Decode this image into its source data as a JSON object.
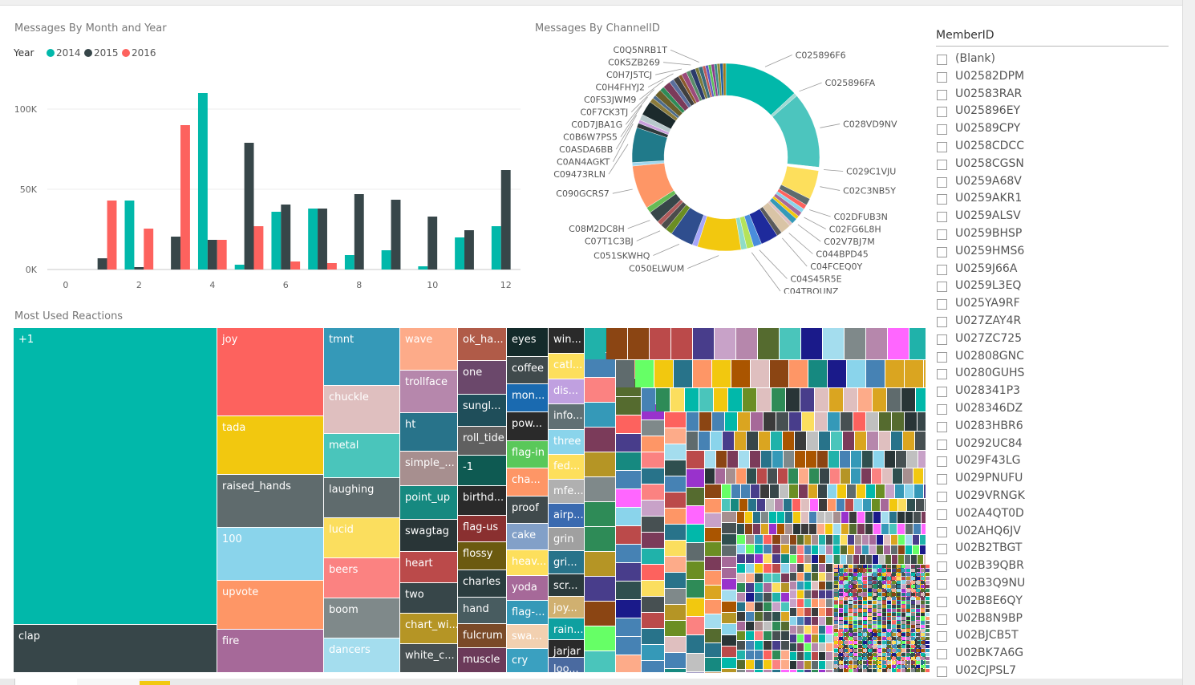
{
  "bar_visual": {
    "title": "Messages By Month and Year"
  },
  "donut_visual": {
    "title": "Messages By ChannelID"
  },
  "treemap_visual": {
    "title": "Most Used Reactions"
  },
  "slicer": {
    "title": "MemberID",
    "items": [
      "(Blank)",
      "U02582DPM",
      "U02583RAR",
      "U025896EY",
      "U02589CPY",
      "U0258CDCC",
      "U0258CGSN",
      "U0259A68V",
      "U0259AKR1",
      "U0259ALSV",
      "U0259BHSP",
      "U0259HMS6",
      "U0259J66A",
      "U0259L3EQ",
      "U025YA9RF",
      "U027ZAY4R",
      "U027ZC725",
      "U02808GNC",
      "U0280GUHS",
      "U028341P3",
      "U028346DZ",
      "U0283HBR6",
      "U0292UC84",
      "U029F43LG",
      "U029PNUFU",
      "U029VRNGK",
      "U02A4QT0D",
      "U02AHQ6JV",
      "U02B2TBGT",
      "U02B39QBR",
      "U02B3Q9NU",
      "U02B8E6QY",
      "U02B8N9BP",
      "U02BJCB5T",
      "U02BK7A6G",
      "U02CJPSL7"
    ]
  },
  "chart_data": [
    {
      "type": "bar",
      "title": "Messages By Month and Year",
      "legend": {
        "title": "Year",
        "placement": "top-left"
      },
      "x": [
        1,
        2,
        3,
        4,
        5,
        6,
        7,
        8,
        9,
        10,
        11,
        12
      ],
      "xticks": [
        0,
        2,
        4,
        6,
        8,
        10,
        12
      ],
      "xlim": [
        -0.5,
        12.4
      ],
      "ylim": [
        0,
        115000
      ],
      "yticks": [
        {
          "v": 0,
          "label": "0K"
        },
        {
          "v": 50000,
          "label": "50K"
        },
        {
          "v": 100000,
          "label": "100K"
        }
      ],
      "grid": true,
      "series": [
        {
          "name": "2014",
          "color": "#01b8aa",
          "values": [
            0,
            43000,
            0,
            110000,
            3000,
            36000,
            38000,
            9000,
            12000,
            2000,
            20000,
            27000
          ]
        },
        {
          "name": "2015",
          "color": "#374649",
          "values": [
            7000,
            1500,
            20500,
            18500,
            79000,
            40500,
            38000,
            47000,
            43500,
            33000,
            24500,
            62000
          ]
        },
        {
          "name": "2016",
          "color": "#fd625e",
          "values": [
            43000,
            25500,
            90000,
            18500,
            27000,
            5000,
            4000,
            0,
            0,
            0,
            0,
            0
          ]
        }
      ]
    },
    {
      "type": "pie",
      "title": "Messages By ChannelID",
      "slices": [
        {
          "label": "C025896F6",
          "value": 13,
          "color": "#01b8aa"
        },
        {
          "label": "C025896FA",
          "value": 0.6,
          "color": "#9fd9d3"
        },
        {
          "label": "C028VD9NV",
          "value": 13,
          "color": "#4cc5be"
        },
        {
          "label": "C029C1VJU",
          "value": 0.6,
          "color": "#ffffff"
        },
        {
          "label": "C02C3NB5Y",
          "value": 5,
          "color": "#fddf5c"
        },
        {
          "label": "",
          "value": 1.2,
          "color": "#5f6b6d"
        },
        {
          "label": "C02DFUB3N",
          "value": 0.8,
          "color": "#fd625e"
        },
        {
          "label": "",
          "value": 0.7,
          "color": "#8ad4eb"
        },
        {
          "label": "C02FG6L8H",
          "value": 0.8,
          "color": "#a66999"
        },
        {
          "label": "",
          "value": 0.6,
          "color": "#f2c80f"
        },
        {
          "label": "C02V7BJ7M",
          "value": 1.0,
          "color": "#3599b8"
        },
        {
          "label": "",
          "value": 0.6,
          "color": "#dfbfbf"
        },
        {
          "label": "C044BPD45",
          "value": 1.8,
          "color": "#d9c4a6"
        },
        {
          "label": "C04FCEQ0Y",
          "value": 0.9,
          "color": "#5b5b5b"
        },
        {
          "label": "",
          "value": 3.0,
          "color": "#1e2a9c"
        },
        {
          "label": "C04S45R5E",
          "value": 1.4,
          "color": "#4a8ddc"
        },
        {
          "label": "C04TBQUNZ",
          "value": 1.2,
          "color": "#b5e35a"
        },
        {
          "label": "",
          "value": 1.0,
          "color": "#8fdcc8"
        },
        {
          "label": "C050ELWUM",
          "value": 7.5,
          "color": "#f2c80f"
        },
        {
          "label": "",
          "value": 0.9,
          "color": "#a6a6fb"
        },
        {
          "label": "C051SKWHQ",
          "value": 4.0,
          "color": "#2f4e8e"
        },
        {
          "label": "",
          "value": 1.2,
          "color": "#6b8e23"
        },
        {
          "label": "C07T1C3BJ",
          "value": 1.1,
          "color": "#4c4c4c"
        },
        {
          "label": "",
          "value": 0.8,
          "color": "#b05b5b"
        },
        {
          "label": "C08M2DC8H",
          "value": 2.0,
          "color": "#374649"
        },
        {
          "label": "",
          "value": 1.0,
          "color": "#66bb55"
        },
        {
          "label": "C090GCRS7",
          "value": 7.5,
          "color": "#fe9666"
        },
        {
          "label": "",
          "value": 0.6,
          "color": "#a0d8ef"
        },
        {
          "label": "C09473RLN",
          "value": 6.0,
          "color": "#207a8a"
        },
        {
          "label": "C0AN4AGKT",
          "value": 0.8,
          "color": "#2e3a3c"
        },
        {
          "label": "",
          "value": 0.6,
          "color": "#c9a0dc"
        },
        {
          "label": "C0ASDA6BB",
          "value": 1.0,
          "color": "#b8c9cc"
        },
        {
          "label": "C0B6W7PS5",
          "value": 2.5,
          "color": "#1c2a2c"
        },
        {
          "label": "C0D7JBA1G",
          "value": 0.8,
          "color": "#8b7b3b"
        },
        {
          "label": "",
          "value": 0.6,
          "color": "#4d6b8a"
        },
        {
          "label": "C0F7CK3TJ",
          "value": 1.2,
          "color": "#6a5f2a"
        },
        {
          "label": "",
          "value": 0.8,
          "color": "#2e8b57"
        },
        {
          "label": "C0FS3JWM9",
          "value": 1.3,
          "color": "#7b3b5a"
        },
        {
          "label": "",
          "value": 0.8,
          "color": "#5a6e9c"
        },
        {
          "label": "C0H4FHYJ2",
          "value": 1.0,
          "color": "#3f3f3f"
        },
        {
          "label": "",
          "value": 0.6,
          "color": "#8a5a2b"
        },
        {
          "label": "C0H7J5TCJ",
          "value": 0.9,
          "color": "#9c4a7a"
        },
        {
          "label": "",
          "value": 0.7,
          "color": "#5a8c6a"
        },
        {
          "label": "C0K5ZB269",
          "value": 0.9,
          "color": "#2b3b6b"
        },
        {
          "label": "",
          "value": 0.6,
          "color": "#7a7a3a"
        },
        {
          "label": "C0Q5NRB1T",
          "value": 0.7,
          "color": "#3b6b7b"
        },
        {
          "label": "",
          "value": 0.5,
          "color": "#c05a5a"
        },
        {
          "label": "",
          "value": 0.5,
          "color": "#5a5ac0"
        },
        {
          "label": "",
          "value": 0.5,
          "color": "#5ac05a"
        },
        {
          "label": "",
          "value": 0.5,
          "color": "#8a3a8a"
        },
        {
          "label": "",
          "value": 0.5,
          "color": "#3a8a8a"
        },
        {
          "label": "",
          "value": 0.5,
          "color": "#8a8a3a"
        },
        {
          "label": "",
          "value": 0.5,
          "color": "#1a5aa0"
        },
        {
          "label": "",
          "value": 0.5,
          "color": "#a07a1a"
        }
      ]
    },
    {
      "type": "treemap",
      "title": "Most Used Reactions",
      "items": [
        {
          "label": "+1",
          "color": "#01b8aa"
        },
        {
          "label": "clap",
          "color": "#374649"
        },
        {
          "label": "joy",
          "color": "#fd625e"
        },
        {
          "label": "tada",
          "color": "#f2c80f"
        },
        {
          "label": "raised_hands",
          "color": "#5f6b6d"
        },
        {
          "label": "100",
          "color": "#8ad4eb"
        },
        {
          "label": "upvote",
          "color": "#fe9666"
        },
        {
          "label": "fire",
          "color": "#a66999"
        },
        {
          "label": "tmnt",
          "color": "#3599b8"
        },
        {
          "label": "chuckle",
          "color": "#dfbfbf"
        },
        {
          "label": "metal",
          "color": "#4ac5bb"
        },
        {
          "label": "laughing",
          "color": "#5f6b6d"
        },
        {
          "label": "lucid",
          "color": "#fbde5e"
        },
        {
          "label": "beers",
          "color": "#fb8281"
        },
        {
          "label": "boom",
          "color": "#7f898a"
        },
        {
          "label": "dancers",
          "color": "#a4ddee"
        },
        {
          "label": "wave",
          "color": "#fdab89"
        },
        {
          "label": "trollface",
          "color": "#b687ac"
        },
        {
          "label": "ht",
          "color": "#28738a"
        },
        {
          "label": "simple_...",
          "color": "#a78f8f"
        },
        {
          "label": "point_up",
          "color": "#168980"
        },
        {
          "label": "swagtag",
          "color": "#293537"
        },
        {
          "label": "heart",
          "color": "#bb4a4a"
        },
        {
          "label": "two",
          "color": "#374649"
        },
        {
          "label": "chart_wi...",
          "color": "#b59525"
        },
        {
          "label": "white_c...",
          "color": "#475052"
        },
        {
          "label": "ok_ha...",
          "color": "#b05b48"
        },
        {
          "label": "one",
          "color": "#6b486b"
        },
        {
          "label": "sungl...",
          "color": "#1f4e5a"
        },
        {
          "label": "roll_tide",
          "color": "#606060"
        },
        {
          "label": "-1",
          "color": "#0e5a52"
        },
        {
          "label": "birthd...",
          "color": "#2a2a2a"
        },
        {
          "label": "flag-us",
          "color": "#8a3030"
        },
        {
          "label": "flossy",
          "color": "#6b5a10"
        },
        {
          "label": "charles",
          "color": "#2b3d3f"
        },
        {
          "label": "hand",
          "color": "#485c60"
        },
        {
          "label": "fulcrum",
          "color": "#7a4a28"
        },
        {
          "label": "muscle",
          "color": "#6b3a5a"
        },
        {
          "label": "eyes",
          "color": "#142a2a"
        },
        {
          "label": "coffee",
          "color": "#404a4c"
        },
        {
          "label": "mon...",
          "color": "#1a6ab0"
        },
        {
          "label": "pow...",
          "color": "#2a2a2a"
        },
        {
          "label": "flag-in",
          "color": "#5ac85a"
        },
        {
          "label": "cha...",
          "color": "#fe9666"
        },
        {
          "label": "proof",
          "color": "#404a4c"
        },
        {
          "label": "cake",
          "color": "#82a0c8"
        },
        {
          "label": "heav...",
          "color": "#fddf5c"
        },
        {
          "label": "yoda",
          "color": "#a66999"
        },
        {
          "label": "flag-...",
          "color": "#3599b8"
        },
        {
          "label": "swa...",
          "color": "#f2d0b0"
        },
        {
          "label": "cry",
          "color": "#3aa0c0"
        },
        {
          "label": "win...",
          "color": "#2a2a2a"
        },
        {
          "label": "catl...",
          "color": "#fddf5c"
        },
        {
          "label": "dis...",
          "color": "#c0a0e0"
        },
        {
          "label": "info...",
          "color": "#607074"
        },
        {
          "label": "three",
          "color": "#8ad4eb"
        },
        {
          "label": "fed...",
          "color": "#fddf5c"
        },
        {
          "label": "mfe...",
          "color": "#b0b0b0"
        },
        {
          "label": "airp...",
          "color": "#3a6ab0"
        },
        {
          "label": "grin",
          "color": "#a0a0a0"
        },
        {
          "label": "gri...",
          "color": "#28738a"
        },
        {
          "label": "scr...",
          "color": "#2a3a3c"
        },
        {
          "label": "joy...",
          "color": "#d0b070"
        },
        {
          "label": "rain...",
          "color": "#0ea0a0"
        },
        {
          "label": "jarjar",
          "color": "#2a2a2a"
        },
        {
          "label": "loo...",
          "color": "#4a6aa0"
        }
      ]
    }
  ]
}
